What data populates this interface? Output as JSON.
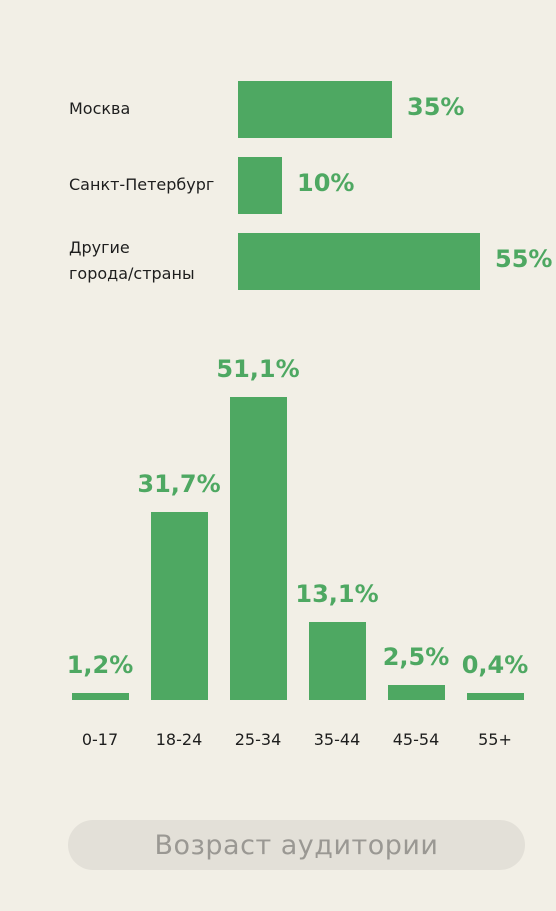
{
  "chart_data": [
    {
      "type": "bar",
      "orientation": "horizontal",
      "categories": [
        "Москва",
        "Санкт-Петербург",
        "Другие\nгорода/страны"
      ],
      "values": [
        35,
        10,
        55
      ],
      "value_labels": [
        "35%",
        "10%",
        "55%"
      ],
      "color": "#4ea862"
    },
    {
      "type": "bar",
      "orientation": "vertical",
      "categories": [
        "0-17",
        "18-24",
        "25-34",
        "35-44",
        "45-54",
        "55+"
      ],
      "values": [
        1.2,
        31.7,
        51.1,
        13.1,
        2.5,
        0.4
      ],
      "value_labels": [
        "1,2%",
        "31,7%",
        "51,1%",
        "13,1%",
        "2,5%",
        "0,4%"
      ],
      "color": "#4ea862"
    }
  ],
  "caption": "Возраст аудитории",
  "colors": {
    "background": "#f2efe6",
    "bar": "#4ea862",
    "caption_pill": "#e3e0d8",
    "caption_text": "#9a9893"
  }
}
